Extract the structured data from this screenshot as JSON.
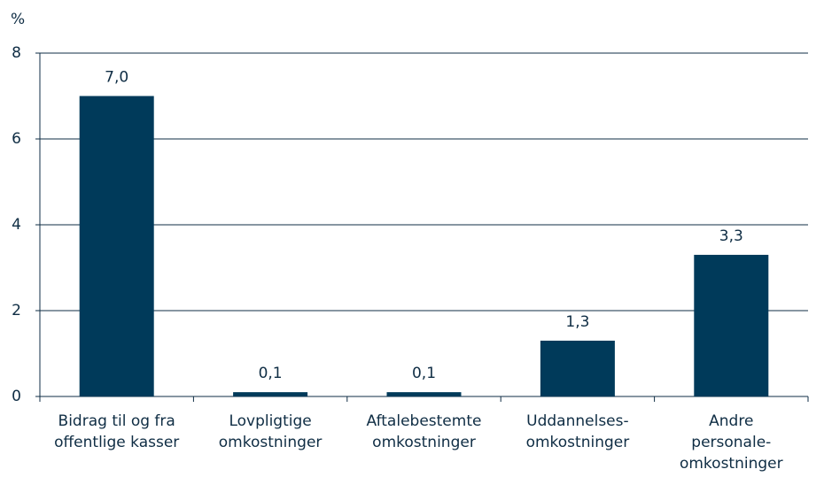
{
  "chart_data": {
    "type": "bar",
    "y_label": "%",
    "categories": [
      [
        "Bidrag til og fra",
        "offentlige kasser"
      ],
      [
        "Lovpligtige",
        "omkostninger"
      ],
      [
        "Aftalebestemte",
        "omkostninger"
      ],
      [
        "Uddannelses-",
        "omkostninger"
      ],
      [
        "Andre",
        "personale-",
        "omkostninger"
      ]
    ],
    "values": [
      7.0,
      0.1,
      0.1,
      1.3,
      3.3
    ],
    "value_labels": [
      "7,0",
      "0,1",
      "0,1",
      "1,3",
      "3,3"
    ],
    "color": "#003a5a",
    "ylim": [
      0,
      8
    ],
    "yticks": [
      0,
      2,
      4,
      6,
      8
    ],
    "grid": true
  }
}
